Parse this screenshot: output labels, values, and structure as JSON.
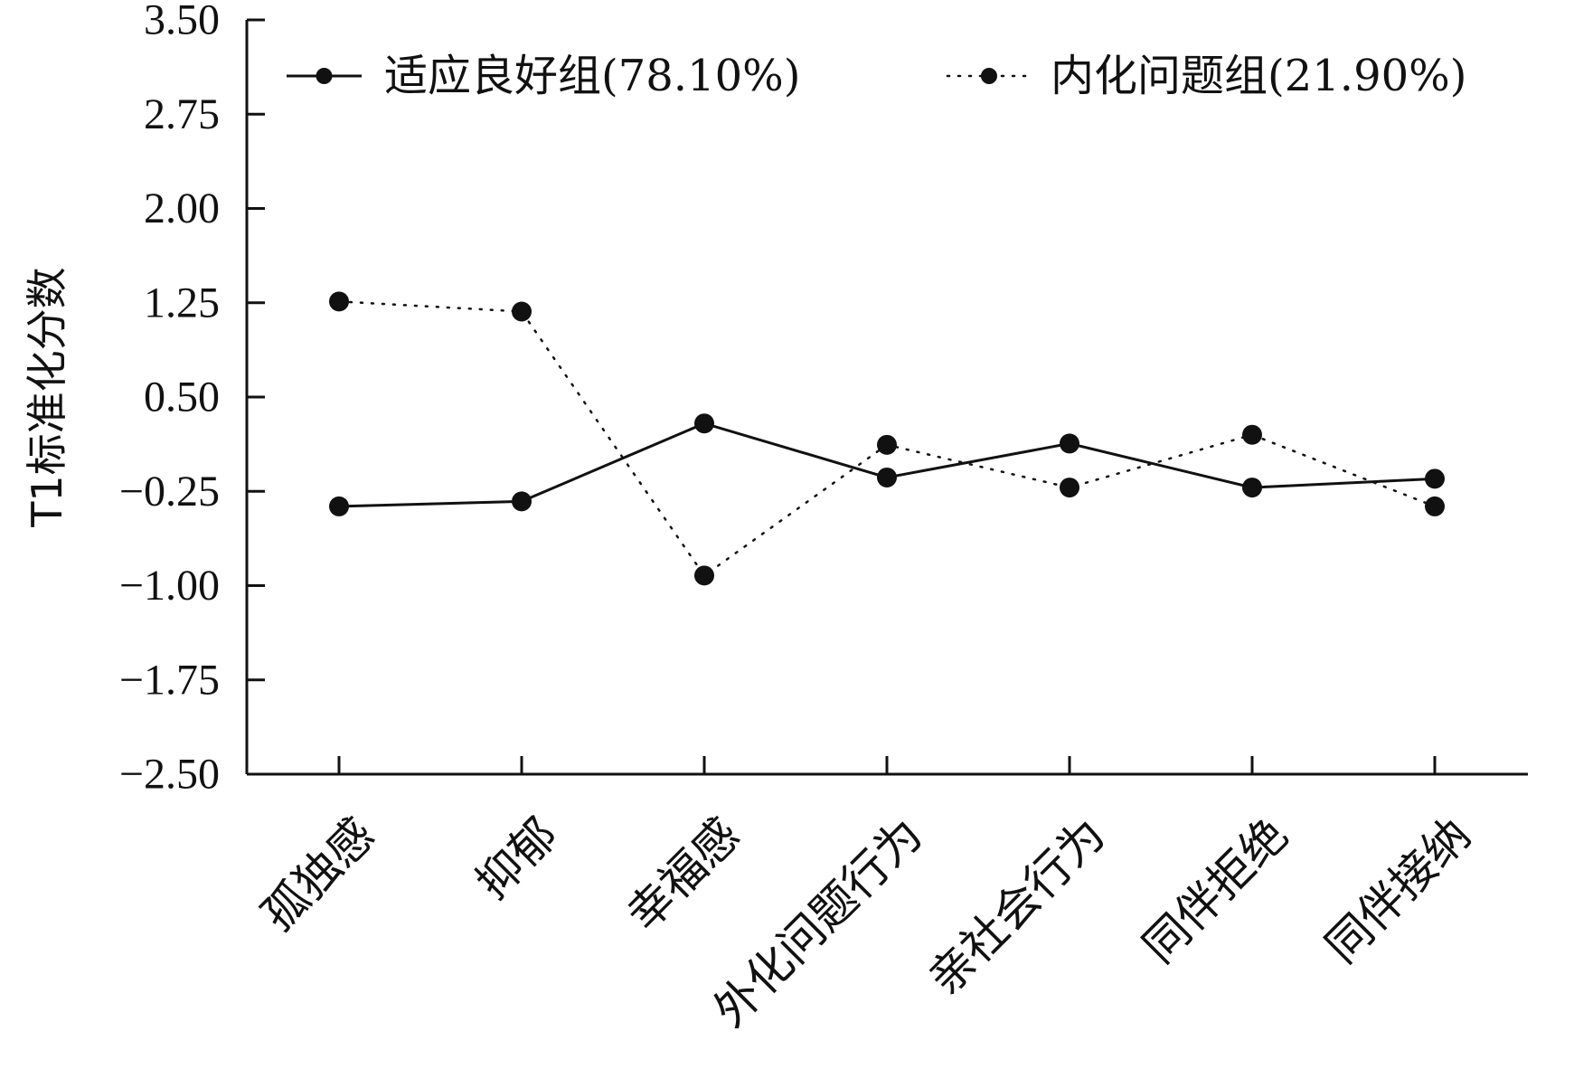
{
  "chart_data": {
    "type": "line",
    "ylabel": "T1标准化分数",
    "xlabel": "",
    "ylim": [
      -2.5,
      3.5
    ],
    "yticks": [
      3.5,
      2.75,
      2.0,
      1.25,
      0.5,
      -0.25,
      -1.0,
      -1.75,
      -2.5
    ],
    "ytick_labels": [
      "3.50",
      "2.75",
      "2.00",
      "1.25",
      "0.50",
      "−0.25",
      "−1.00",
      "−1.75",
      "−2.50"
    ],
    "categories": [
      "孤独感",
      "抑郁",
      "幸福感",
      "外化问题行为",
      "亲社会行为",
      "同伴拒绝",
      "同伴接纳"
    ],
    "legend_position": "top",
    "grid": false,
    "series": [
      {
        "name": "适应良好组(78.10%)",
        "values": [
          -0.37,
          -0.33,
          0.29,
          -0.14,
          0.13,
          -0.22,
          -0.15
        ],
        "line_style": "solid",
        "color": "#111111"
      },
      {
        "name": "内化问题组(21.90%)",
        "values": [
          1.26,
          1.18,
          -0.92,
          0.12,
          -0.22,
          0.2,
          -0.37
        ],
        "line_style": "dotted",
        "color": "#111111"
      }
    ]
  }
}
